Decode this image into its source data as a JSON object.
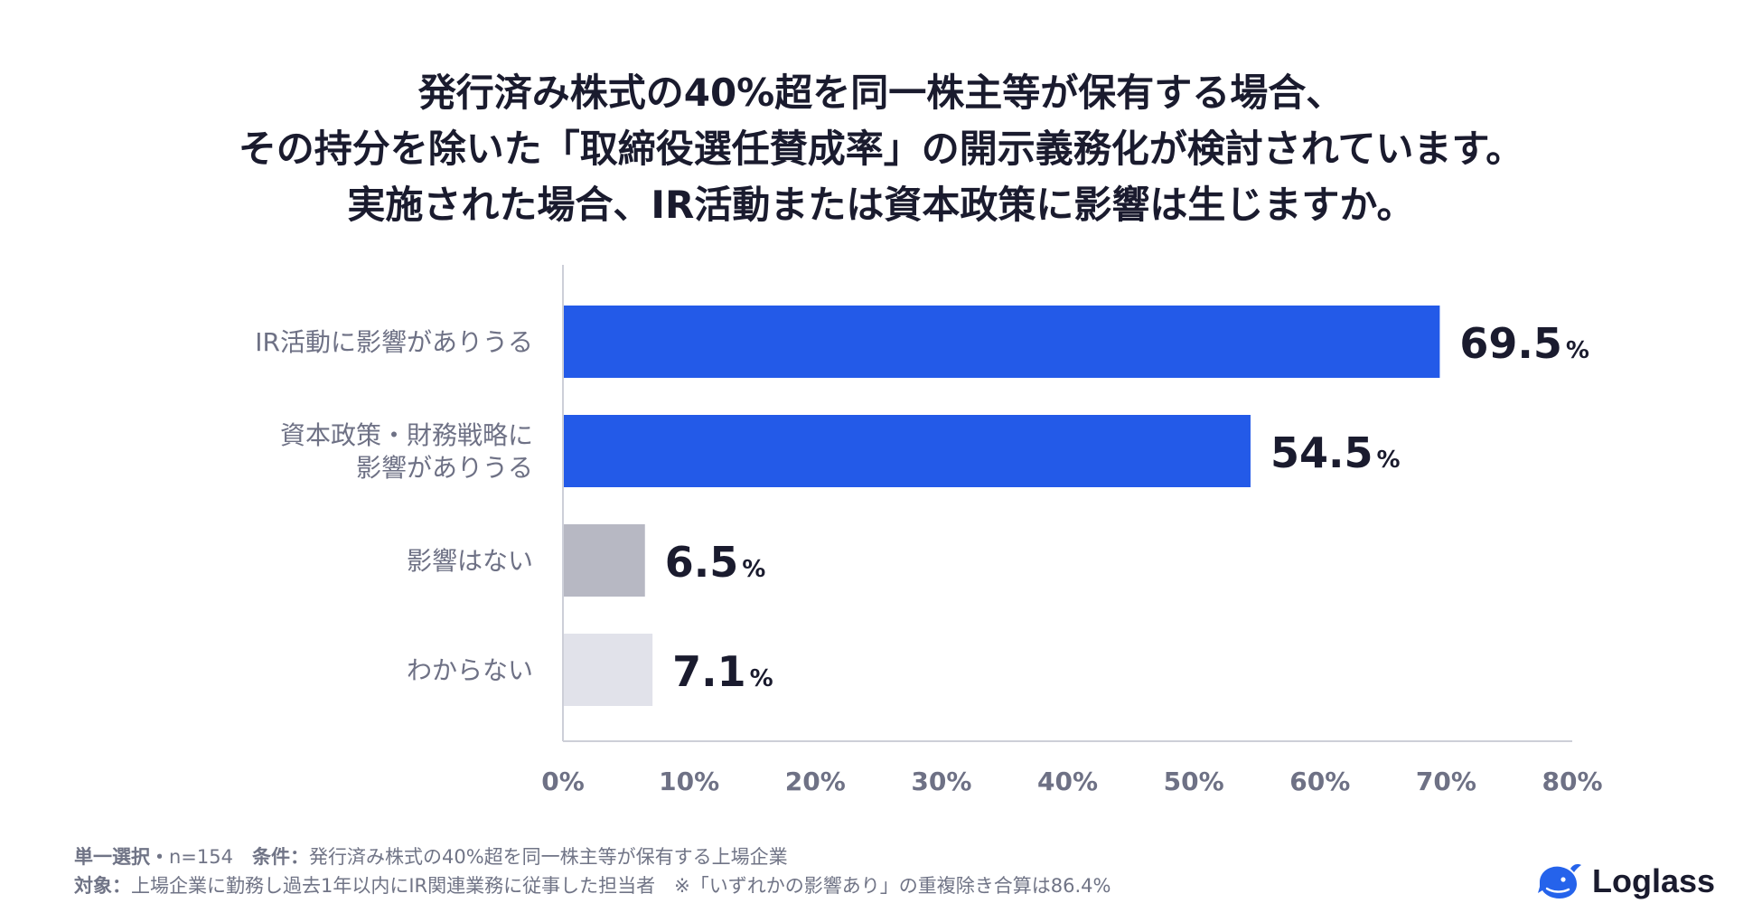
{
  "title": {
    "line1": "発行済み株式の40%超を同一株主等が保有する場合、",
    "line2": "その持分を除いた「取締役選任賛成率」の開示義務化が検討されています。",
    "line3": "実施された場合、IR活動または資本政策に影響は生じますか。"
  },
  "chart_data": {
    "type": "bar",
    "orientation": "horizontal",
    "categories": [
      [
        "IR活動に影響がありうる"
      ],
      [
        "資本政策・財務戦略に",
        "影響がありうる"
      ],
      [
        "影響はない"
      ],
      [
        "わからない"
      ]
    ],
    "values": [
      69.5,
      54.5,
      6.5,
      7.1
    ],
    "value_labels": [
      "69.5",
      "54.5",
      "6.5",
      "7.1"
    ],
    "value_unit": "%",
    "bar_colors": [
      "#235ae8",
      "#235ae8",
      "#b7b8c3",
      "#e1e2ea"
    ],
    "xlim": [
      0,
      80
    ],
    "x_ticks": [
      "0%",
      "10%",
      "20%",
      "30%",
      "40%",
      "50%",
      "60%",
      "70%",
      "80%"
    ],
    "grid": false
  },
  "footnote": {
    "line1_label": "単一選択・",
    "line1_n": "n=154　",
    "line1_cond_label": "条件：",
    "line1_cond": "発行済み株式の40%超を同一株主等が保有する上場企業",
    "line2_label": "対象：",
    "line2_text": "上場企業に勤務し過去1年以内にIR関連業務に従事した担当者　※「いずれかの影響あり」の重複除き合算は86.4%"
  },
  "logo": {
    "text": "Loglass",
    "icon": "whale-icon",
    "color": "#2563eb"
  }
}
